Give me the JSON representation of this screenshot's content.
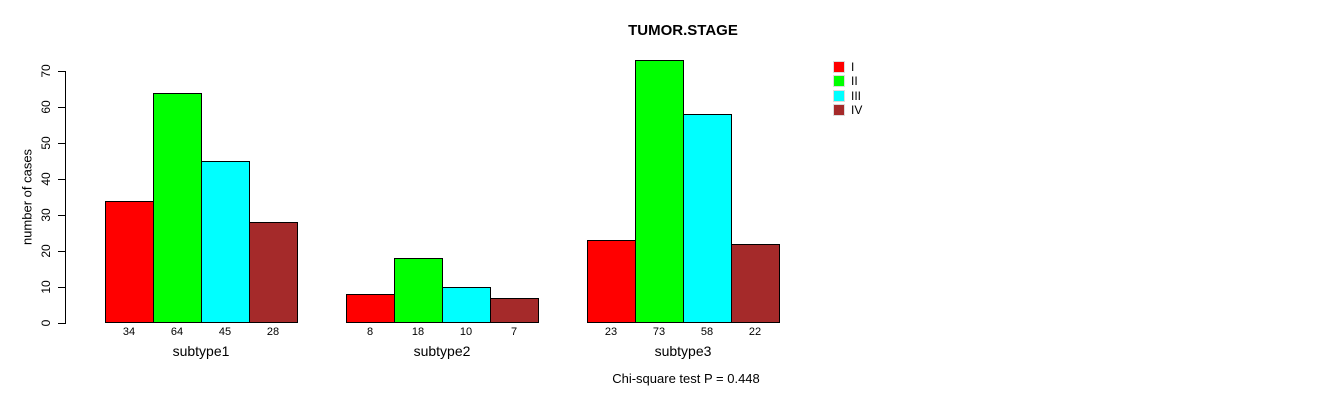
{
  "chart_data": {
    "type": "bar",
    "title": "TUMOR.STAGE",
    "xlabel": "",
    "ylabel": "number of cases",
    "ylim": [
      0,
      70
    ],
    "yticks": [
      0,
      10,
      20,
      30,
      40,
      50,
      60,
      70
    ],
    "grid": false,
    "categories": [
      "subtype1",
      "subtype2",
      "subtype3"
    ],
    "series": [
      {
        "name": "I",
        "color": "#ff0000",
        "values": [
          34,
          8,
          23
        ]
      },
      {
        "name": "II",
        "color": "#00ff00",
        "values": [
          64,
          18,
          73
        ]
      },
      {
        "name": "III",
        "color": "#00ffff",
        "values": [
          45,
          10,
          58
        ]
      },
      {
        "name": "IV",
        "color": "#a52a2a",
        "values": [
          28,
          7,
          22
        ]
      }
    ],
    "bar_value_labels": [
      [
        34,
        64,
        45,
        28
      ],
      [
        8,
        18,
        10,
        7
      ],
      [
        23,
        73,
        58,
        22
      ]
    ],
    "legend_position": "top-right",
    "annotation": "Chi-square test P = 0.448"
  },
  "legend": {
    "items": [
      {
        "label": "I",
        "color": "#ff0000"
      },
      {
        "label": "II",
        "color": "#00ff00"
      },
      {
        "label": "III",
        "color": "#00ffff"
      },
      {
        "label": "IV",
        "color": "#a52a2a"
      }
    ]
  }
}
